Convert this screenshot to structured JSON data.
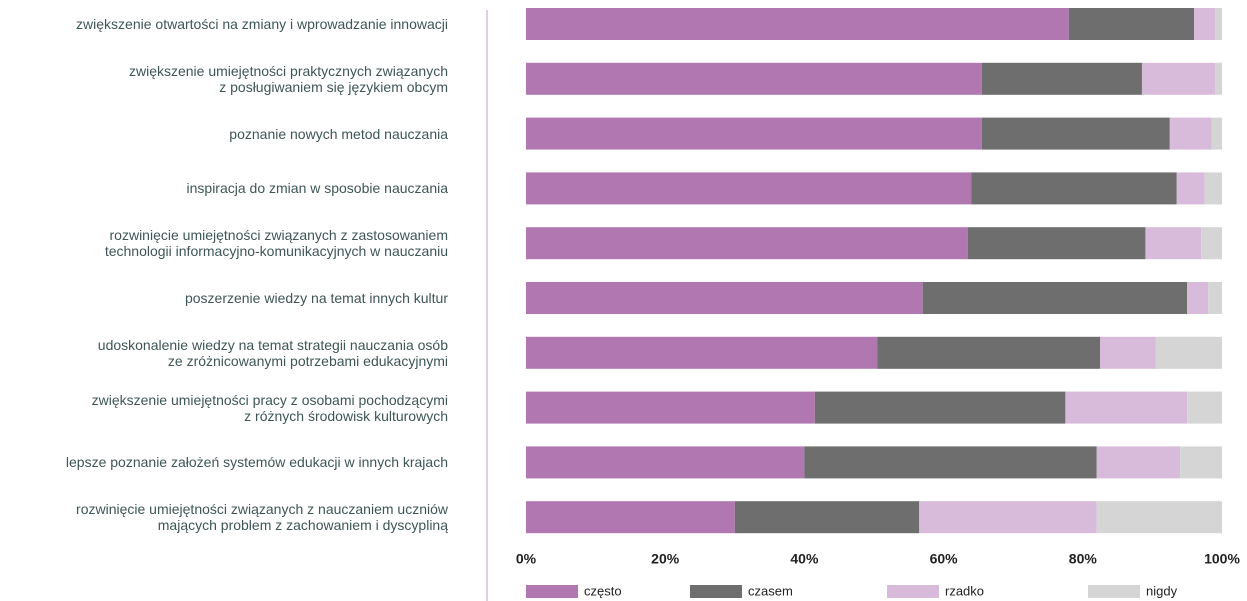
{
  "chart_data": {
    "type": "stacked_bar_horizontal",
    "categories": [
      "zwiększenie otwartości na zmiany i wprowadzanie innowacji",
      "zwiększenie umiejętności praktycznych związanych\nz posługiwaniem się językiem obcym",
      "poznanie nowych metod nauczania",
      "inspiracja do zmian w sposobie nauczania",
      "rozwinięcie umiejętności związanych z zastosowaniem\ntechnologii informacyjno-komunikacyjnych w nauczaniu",
      "poszerzenie wiedzy na temat innych kultur",
      "udoskonalenie wiedzy na temat strategii nauczania osób\nze zróżnicowanymi potrzebami edukacyjnymi",
      "zwiększenie umiejętności pracy z osobami pochodzącymi\nz różnych środowisk kulturowych",
      "lepsze poznanie założeń systemów edukacji w innych krajach",
      "rozwinięcie umiejętności związanych z nauczaniem uczniów\nmających problem z zachowaniem i dyscypliną"
    ],
    "series": [
      {
        "name": "często",
        "color": "#b077b1",
        "values": [
          78,
          65.5,
          65.5,
          64,
          63.5,
          57,
          50.5,
          41.5,
          40,
          30
        ]
      },
      {
        "name": "czasem",
        "color": "#6e6e6e",
        "values": [
          18,
          23,
          27,
          29.5,
          25.5,
          38,
          32,
          36,
          42,
          26.5
        ]
      },
      {
        "name": "rzadko",
        "color": "#d8bada",
        "values": [
          3,
          10.5,
          6,
          4,
          8,
          3,
          8,
          17.5,
          12,
          25.5
        ]
      },
      {
        "name": "nigdy",
        "color": "#d5d5d5",
        "values": [
          1,
          1,
          1.5,
          2.5,
          3,
          2,
          9.5,
          5,
          6,
          18
        ]
      }
    ],
    "xlim": [
      0,
      100
    ],
    "xticks": [
      {
        "value": 0,
        "label": "0%"
      },
      {
        "value": 20,
        "label": "20%"
      },
      {
        "value": 40,
        "label": "40%"
      },
      {
        "value": 60,
        "label": "60%"
      },
      {
        "value": 80,
        "label": "80%"
      },
      {
        "value": 100,
        "label": "100%"
      }
    ],
    "legend": "bottom"
  }
}
